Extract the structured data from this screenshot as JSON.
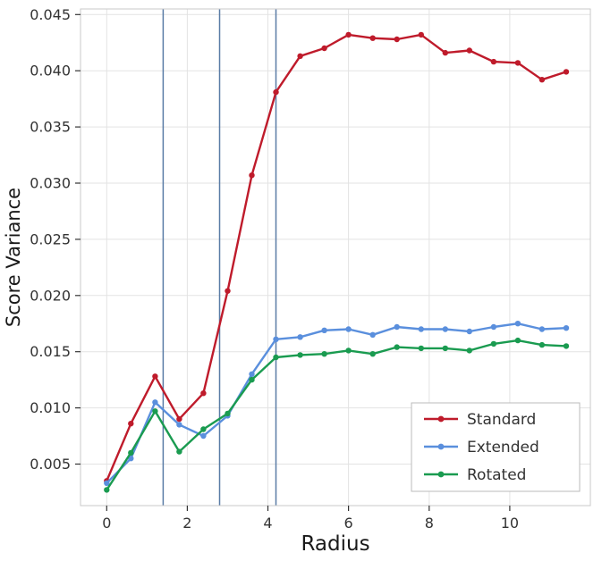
{
  "chart_data": {
    "type": "line",
    "title": "",
    "xlabel": "Radius",
    "ylabel": "Score Variance",
    "x": [
      0,
      0.6,
      1.2,
      1.8,
      2.4,
      3.0,
      3.6,
      4.2,
      4.8,
      5.4,
      6.0,
      6.6,
      7.2,
      7.8,
      8.4,
      9.0,
      9.6,
      10.2,
      10.8,
      11.4
    ],
    "series": [
      {
        "name": "Standard",
        "color": "#bf1b2b",
        "values": [
          0.0035,
          0.0086,
          0.0128,
          0.009,
          0.0113,
          0.0204,
          0.0307,
          0.0381,
          0.0413,
          0.042,
          0.0432,
          0.0429,
          0.0428,
          0.0432,
          0.0416,
          0.0418,
          0.0408,
          0.0407,
          0.0392,
          0.0399
        ]
      },
      {
        "name": "Extended",
        "color": "#5a8fdd",
        "values": [
          0.0033,
          0.0055,
          0.0105,
          0.0085,
          0.0075,
          0.0093,
          0.013,
          0.0161,
          0.0163,
          0.0169,
          0.017,
          0.0165,
          0.0172,
          0.017,
          0.017,
          0.0168,
          0.0172,
          0.0175,
          0.017,
          0.0171
        ]
      },
      {
        "name": "Rotated",
        "color": "#1a9b50",
        "values": [
          0.0027,
          0.006,
          0.0097,
          0.0061,
          0.0081,
          0.0095,
          0.0125,
          0.0145,
          0.0147,
          0.0148,
          0.0151,
          0.0148,
          0.0154,
          0.0153,
          0.0153,
          0.0151,
          0.0157,
          0.016,
          0.0156,
          0.0155
        ]
      }
    ],
    "vlines": {
      "color": "#5a7ca6",
      "x": [
        1.4,
        2.8,
        4.2
      ]
    },
    "xticks": [
      0,
      2,
      4,
      6,
      8,
      10
    ],
    "yticks": [
      0.005,
      0.01,
      0.015,
      0.02,
      0.025,
      0.03,
      0.035,
      0.04,
      0.045
    ],
    "xlim": [
      -0.65,
      12.0
    ],
    "ylim": [
      0.0013,
      0.0455
    ],
    "grid": true,
    "legend": {
      "position": "lower right",
      "labels": [
        "Standard",
        "Extended",
        "Rotated"
      ]
    },
    "colors": {
      "grid": "#e3e3e3",
      "panel_border": "#c9c9c9",
      "tick_text": "#333333",
      "axis_title": "#1a1a1a",
      "legend_border": "#bbbbbb",
      "background": "#ffffff"
    }
  }
}
